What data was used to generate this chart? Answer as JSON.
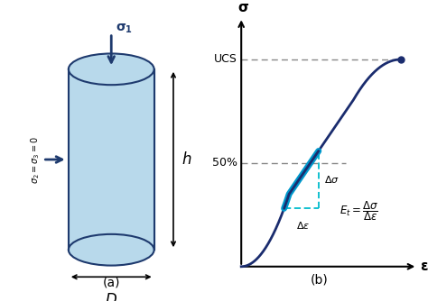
{
  "fig_width": 4.74,
  "fig_height": 3.34,
  "dpi": 100,
  "background": "#ffffff",
  "cyl_fill": "#b8d9eb",
  "cyl_edge": "#1e3a6e",
  "arrow_color": "#1e3a6e",
  "sigma1_label": "$\\mathbf{\\sigma_1}$",
  "sigma23_label": "$\\sigma_2=\\sigma_3=0$",
  "h_label": "$h$",
  "D_label": "$D$",
  "label_a": "(a)",
  "label_b": "(b)",
  "curve_color": "#1a2c6e",
  "highlight_color": "#0099cc",
  "box_color": "#00bbcc",
  "UCS_label": "UCS",
  "fifty_label": "50%",
  "sigma_axis_label": "$\\mathbf{\\sigma}$",
  "epsilon_axis_label": "$\\boldsymbol{\\varepsilon}$",
  "Et_label": "$E_t$",
  "Delta_sigma": "$\\Delta\\sigma$",
  "Delta_epsilon": "$\\Delta\\varepsilon$"
}
